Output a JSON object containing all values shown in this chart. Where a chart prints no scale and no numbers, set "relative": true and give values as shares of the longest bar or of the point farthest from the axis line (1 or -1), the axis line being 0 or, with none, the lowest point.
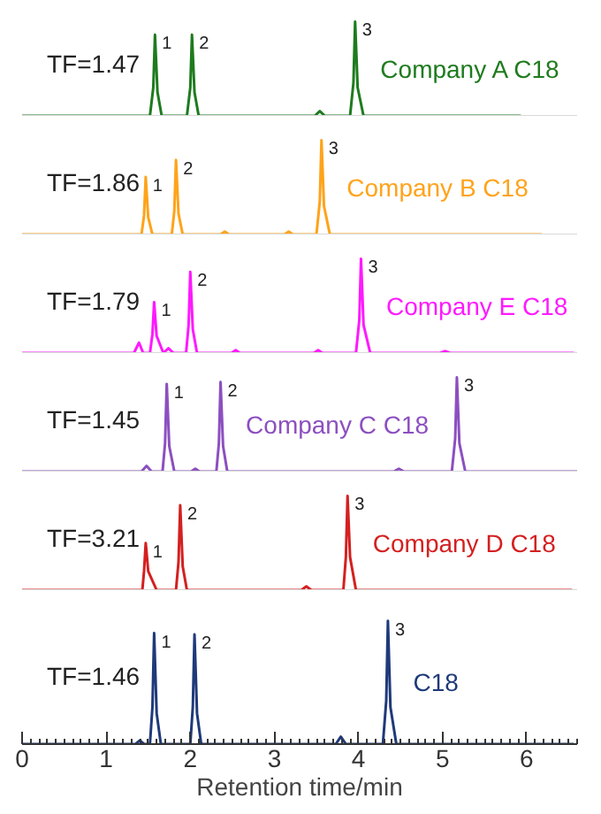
{
  "chart_data": [
    {
      "type": "line",
      "relative": true,
      "xlim": [
        0,
        6.6
      ],
      "tick_labels": false,
      "grid": false,
      "series": [
        {
          "name": "Company A C18",
          "color": "#1e7b1e",
          "x": [
            0,
            1.52,
            1.56,
            1.58,
            1.61,
            1.66,
            1.96,
            2.0,
            2.02,
            2.05,
            2.1,
            3.48,
            3.54,
            3.6,
            3.9,
            3.94,
            3.96,
            3.99,
            4.06,
            5.93
          ],
          "values": [
            0,
            0,
            0.3,
            0.86,
            0.25,
            0,
            0,
            0.3,
            0.86,
            0.25,
            0,
            0,
            0.05,
            0,
            0,
            0.35,
            1,
            0.3,
            0,
            0
          ]
        }
      ],
      "annotations": [
        "TF=1.47",
        {
          "text": "1",
          "x": 1.58,
          "y": 0.86
        },
        {
          "text": "2",
          "x": 2.02,
          "y": 0.86
        },
        {
          "text": "3",
          "x": 3.96,
          "y": 1
        }
      ]
    },
    {
      "type": "line",
      "relative": true,
      "xlim": [
        0,
        6.6
      ],
      "tick_labels": false,
      "grid": false,
      "series": [
        {
          "name": "Company B C18",
          "color": "#ffa31a",
          "x": [
            0,
            1.42,
            1.45,
            1.47,
            1.5,
            1.55,
            1.78,
            1.81,
            1.83,
            1.86,
            1.91,
            2.36,
            2.41,
            2.46,
            3.12,
            3.17,
            3.22,
            3.5,
            3.54,
            3.56,
            3.59,
            3.66,
            6.18
          ],
          "values": [
            0,
            0,
            0.2,
            0.61,
            0.18,
            0,
            0,
            0.25,
            0.79,
            0.22,
            0,
            0,
            0.03,
            0,
            0,
            0.03,
            0,
            0,
            0.35,
            1,
            0.3,
            0,
            0
          ]
        }
      ],
      "annotations": [
        "TF=1.86",
        {
          "text": "1",
          "x": 1.47,
          "y": 0.61
        },
        {
          "text": "2",
          "x": 1.83,
          "y": 0.79
        },
        {
          "text": "3",
          "x": 3.56,
          "y": 1
        }
      ]
    },
    {
      "type": "line",
      "relative": true,
      "xlim": [
        0,
        6.6
      ],
      "tick_labels": false,
      "grid": false,
      "series": [
        {
          "name": "Company E C18",
          "color": "#ff19ff",
          "x": [
            0,
            1.33,
            1.39,
            1.44,
            1.52,
            1.55,
            1.57,
            1.6,
            1.68,
            1.74,
            1.8,
            1.95,
            1.98,
            2.0,
            2.03,
            2.08,
            2.49,
            2.54,
            2.59,
            3.47,
            3.52,
            3.57,
            3.97,
            4.01,
            4.03,
            4.06,
            4.14,
            4.97,
            5.03,
            5.09,
            6.56
          ],
          "values": [
            0,
            0,
            0.11,
            0,
            0,
            0.2,
            0.54,
            0.18,
            0,
            0.05,
            0,
            0,
            0.3,
            0.86,
            0.25,
            0,
            0,
            0.03,
            0,
            0,
            0.03,
            0,
            0,
            0.35,
            1,
            0.3,
            0,
            0,
            0.02,
            0,
            0
          ]
        }
      ],
      "annotations": [
        "TF=1.79",
        {
          "text": "1",
          "x": 1.57,
          "y": 0.54
        },
        {
          "text": "2",
          "x": 2.0,
          "y": 0.86
        },
        {
          "text": "3",
          "x": 4.03,
          "y": 1
        }
      ]
    },
    {
      "type": "line",
      "relative": true,
      "xlim": [
        0,
        6.6
      ],
      "tick_labels": false,
      "grid": false,
      "series": [
        {
          "name": "Company C C18",
          "color": "#8c4fc0",
          "x": [
            0,
            1.42,
            1.48,
            1.54,
            1.67,
            1.7,
            1.72,
            1.75,
            1.81,
            2.01,
            2.06,
            2.11,
            2.31,
            2.34,
            2.36,
            2.39,
            2.44,
            4.42,
            4.48,
            4.54,
            5.11,
            5.15,
            5.17,
            5.2,
            5.27,
            6.6
          ],
          "values": [
            0,
            0,
            0.06,
            0,
            0,
            0.3,
            0.93,
            0.27,
            0,
            0,
            0.03,
            0,
            0,
            0.3,
            0.95,
            0.27,
            0,
            0,
            0.03,
            0,
            0,
            0.35,
            1,
            0.3,
            0,
            0
          ]
        }
      ],
      "annotations": [
        "TF=1.45",
        {
          "text": "1",
          "x": 1.72,
          "y": 0.93
        },
        {
          "text": "2",
          "x": 2.36,
          "y": 0.95
        },
        {
          "text": "3",
          "x": 5.17,
          "y": 1
        }
      ]
    },
    {
      "type": "line",
      "relative": true,
      "xlim": [
        0,
        6.6
      ],
      "tick_labels": false,
      "grid": false,
      "series": [
        {
          "name": "Company D C18",
          "color": "#d42020",
          "x": [
            0,
            1.43,
            1.45,
            1.47,
            1.5,
            1.6,
            1.83,
            1.86,
            1.88,
            1.91,
            1.96,
            3.32,
            3.38,
            3.44,
            3.82,
            3.85,
            3.87,
            3.9,
            3.97,
            6.54
          ],
          "values": [
            0,
            0,
            0.2,
            0.5,
            0.2,
            0,
            0,
            0.3,
            0.9,
            0.25,
            0,
            0,
            0.04,
            0,
            0,
            0.35,
            1,
            0.35,
            0,
            0
          ]
        }
      ],
      "annotations": [
        "TF=3.21",
        {
          "text": "1",
          "x": 1.47,
          "y": 0.5
        },
        {
          "text": "2",
          "x": 1.88,
          "y": 0.9
        },
        {
          "text": "3",
          "x": 3.87,
          "y": 1
        }
      ]
    },
    {
      "type": "line",
      "relative": true,
      "xlim": [
        0,
        6.6
      ],
      "xticks": [
        0,
        1,
        2,
        3,
        4,
        5,
        6
      ],
      "tick_labels": "x",
      "grid": false,
      "xlabel": "Retention time/min",
      "series": [
        {
          "name": "C18",
          "color": "#1f3a7a",
          "x": [
            0,
            1.35,
            1.4,
            1.45,
            1.52,
            1.55,
            1.57,
            1.6,
            1.65,
            2.0,
            2.03,
            2.05,
            2.08,
            2.13,
            3.73,
            3.79,
            3.85,
            4.29,
            4.33,
            4.35,
            4.38,
            4.45,
            6.56
          ],
          "values": [
            0,
            0,
            0.03,
            0,
            0,
            0.3,
            0.9,
            0.25,
            0,
            0,
            0.3,
            0.89,
            0.25,
            0,
            0,
            0.06,
            0,
            0,
            0.35,
            1,
            0.3,
            0,
            0
          ]
        }
      ],
      "annotations": [
        "TF=1.46",
        {
          "text": "1",
          "x": 1.57,
          "y": 0.9
        },
        {
          "text": "2",
          "x": 2.05,
          "y": 0.89
        },
        {
          "text": "3",
          "x": 4.35,
          "y": 1
        }
      ]
    }
  ]
}
